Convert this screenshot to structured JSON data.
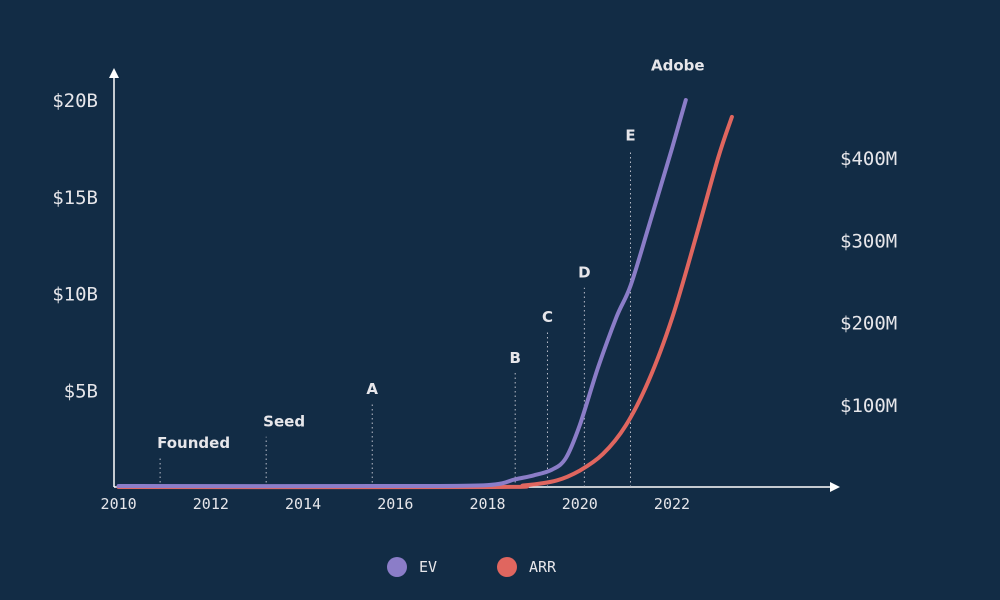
{
  "chart_data": {
    "type": "line",
    "title": "",
    "xlabel": "",
    "ylabel": "",
    "x_ticks": [
      "2010",
      "2012",
      "2014",
      "2016",
      "2018",
      "2020",
      "2022"
    ],
    "y_left_ticks": [
      "$5B",
      "$10B",
      "$15B",
      "$20B"
    ],
    "y_left_tick_values": [
      5,
      10,
      15,
      20
    ],
    "y_right_ticks": [
      "$100M",
      "$200M",
      "$300M",
      "$400M"
    ],
    "y_right_tick_values": [
      100,
      200,
      300,
      400
    ],
    "xlim": [
      2009.9,
      2025.6
    ],
    "ylim_left": [
      0,
      21
    ],
    "ylim_right": [
      0,
      450
    ],
    "series": [
      {
        "name": "EV",
        "axis": "left",
        "color": "#8b7dc8",
        "x": [
          2010,
          2016,
          2018,
          2018.6,
          2019,
          2019.4,
          2019.7,
          2020,
          2020.4,
          2020.8,
          2021.1,
          2021.5,
          2022,
          2022.3
        ],
        "y": [
          0.05,
          0.05,
          0.1,
          0.4,
          0.6,
          0.9,
          1.5,
          3.2,
          6.2,
          8.8,
          10.4,
          13.5,
          17.5,
          20
        ]
      },
      {
        "name": "ARR",
        "axis": "right",
        "color": "#e0665f",
        "x": [
          2010,
          2018,
          2018.8,
          2019.5,
          2020,
          2020.5,
          2021,
          2021.5,
          2022,
          2022.5,
          2023,
          2023.3
        ],
        "y": [
          0,
          0,
          2,
          8,
          20,
          40,
          75,
          130,
          205,
          300,
          400,
          450
        ]
      }
    ],
    "annotations": [
      {
        "label": "Founded",
        "x": 2010.9,
        "height": 1.5
      },
      {
        "label": "Seed",
        "x": 2013.2,
        "height": 2.6
      },
      {
        "label": "A",
        "x": 2015.5,
        "height": 4.3
      },
      {
        "label": "B",
        "x": 2018.6,
        "height": 5.9
      },
      {
        "label": "C",
        "x": 2019.3,
        "height": 8.0
      },
      {
        "label": "D",
        "x": 2020.1,
        "height": 10.3
      },
      {
        "label": "E",
        "x": 2021.1,
        "height": 17.4
      },
      {
        "label": "Adobe",
        "x": 2022.3,
        "height": 21.0
      }
    ],
    "legend": {
      "placement": "bottom-center",
      "items": [
        {
          "label": "EV",
          "color": "#8b7dc8"
        },
        {
          "label": "ARR",
          "color": "#e0665f"
        }
      ]
    }
  }
}
